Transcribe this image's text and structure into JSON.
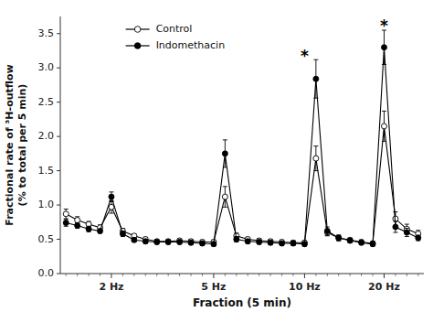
{
  "chart_data": {
    "type": "line",
    "xlabel": "Fraction (5 min)",
    "ylabel": "Fractional rate of ³H-outflow\n(% to total per 5 min)",
    "categories": [
      null,
      null,
      null,
      null,
      "2 Hz",
      null,
      null,
      null,
      null,
      null,
      null,
      null,
      null,
      "5 Hz",
      null,
      null,
      null,
      null,
      null,
      null,
      null,
      "10 Hz",
      null,
      null,
      null,
      null,
      null,
      null,
      "20 Hz",
      null,
      null,
      null
    ],
    "series": [
      {
        "name": "Control",
        "color": "#000000",
        "marker": "circle-open",
        "line_style": "solid",
        "values": [
          0.87,
          0.78,
          0.72,
          0.67,
          0.97,
          0.62,
          0.55,
          0.5,
          0.47,
          0.47,
          0.48,
          0.47,
          0.46,
          0.46,
          1.12,
          0.55,
          0.5,
          0.48,
          0.47,
          0.46,
          0.45,
          0.45,
          1.68,
          0.6,
          0.52,
          0.49,
          0.46,
          0.44,
          2.15,
          0.8,
          0.65,
          0.58
        ],
        "errors": [
          0.07,
          0.05,
          0.04,
          0.04,
          0.09,
          0.04,
          0.03,
          0.03,
          0.03,
          0.03,
          0.03,
          0.03,
          0.03,
          0.03,
          0.15,
          0.04,
          0.03,
          0.03,
          0.03,
          0.03,
          0.03,
          0.03,
          0.18,
          0.05,
          0.04,
          0.03,
          0.03,
          0.03,
          0.22,
          0.1,
          0.07,
          0.05
        ]
      },
      {
        "name": "Indomethacin",
        "color": "#000000",
        "marker": "circle",
        "line_style": "solid",
        "values": [
          0.74,
          0.7,
          0.65,
          0.62,
          1.12,
          0.58,
          0.49,
          0.47,
          0.46,
          0.46,
          0.46,
          0.45,
          0.44,
          0.43,
          1.75,
          0.5,
          0.47,
          0.46,
          0.45,
          0.44,
          0.44,
          0.43,
          2.84,
          0.62,
          0.52,
          0.48,
          0.45,
          0.43,
          3.3,
          0.68,
          0.6,
          0.52
        ],
        "errors": [
          0.05,
          0.04,
          0.04,
          0.03,
          0.07,
          0.04,
          0.03,
          0.03,
          0.03,
          0.03,
          0.03,
          0.03,
          0.03,
          0.03,
          0.2,
          0.04,
          0.03,
          0.03,
          0.03,
          0.03,
          0.03,
          0.03,
          0.28,
          0.06,
          0.04,
          0.03,
          0.03,
          0.03,
          0.25,
          0.08,
          0.06,
          0.04
        ]
      }
    ],
    "ylim": [
      0.0,
      3.75
    ],
    "yticks": [
      {
        "value": 0.0,
        "label": "0.0"
      },
      0.5,
      {
        "value": 1.0,
        "label": "1.0"
      },
      1.5,
      {
        "value": 2.0,
        "label": "2.0"
      },
      2.5,
      {
        "value": 3.0,
        "label": "3.0"
      },
      3.5
    ],
    "annotations": [
      {
        "text": "*",
        "x": "10 Hz",
        "y": 3.22
      },
      {
        "text": "*",
        "x": "20 Hz",
        "y": 3.65
      }
    ],
    "legend": "upper left",
    "grid": false
  }
}
